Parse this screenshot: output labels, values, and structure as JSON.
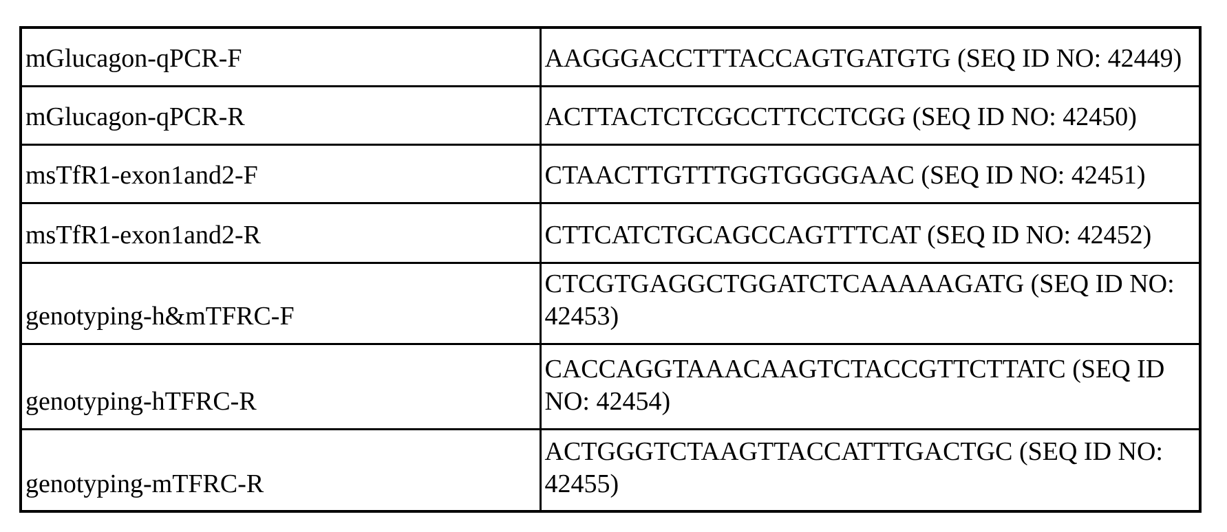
{
  "document": {
    "type": "primer-sequence-table",
    "background_color": "#ffffff",
    "text_color": "#000000",
    "border_color": "#000000"
  },
  "table": {
    "columns": [
      "primer_name",
      "sequence"
    ],
    "rows": [
      {
        "primer_name": "mGlucagon-qPCR-F",
        "sequence": "AAGGGACCTTTACCAGTGATGTG (SEQ ID NO: 42449)"
      },
      {
        "primer_name": "mGlucagon-qPCR-R",
        "sequence": "ACTTACTCTCGCCTTCCTCGG (SEQ ID NO: 42450)"
      },
      {
        "primer_name": "msTfR1-exon1and2-F",
        "sequence": "CTAACTTGTTTGGTGGGGAAC (SEQ ID NO: 42451)"
      },
      {
        "primer_name": "msTfR1-exon1and2-R",
        "sequence": "CTTCATCTGCAGCCAGTTTCAT (SEQ ID NO: 42452)"
      },
      {
        "primer_name": "genotyping-h&mTFRC-F",
        "sequence": "CTCGTGAGGCTGGATCTCAAAAAGATG (SEQ ID NO: 42453)"
      },
      {
        "primer_name": "genotyping-hTFRC-R",
        "sequence": "CACCAGGTAAACAAGTCTACCGTTCTTATC (SEQ ID NO: 42454)"
      },
      {
        "primer_name": "genotyping-mTFRC-R",
        "sequence": "ACTGGGTCTAAGTTACCATTTGACTGC (SEQ ID NO: 42455)"
      }
    ]
  }
}
